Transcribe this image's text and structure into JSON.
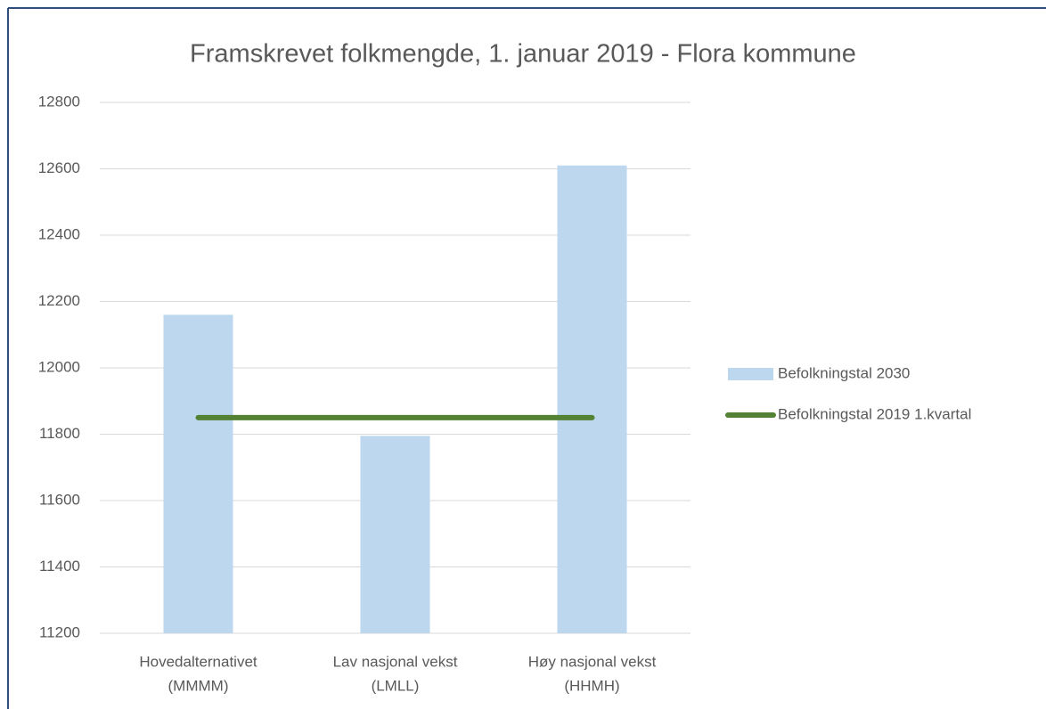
{
  "chart_data": {
    "type": "bar",
    "title": "Framskrevet folkmengde, 1. januar 2019 - Flora kommune",
    "categories": [
      [
        "Hovedalternativet",
        "(MMMM)"
      ],
      [
        "Lav nasjonal vekst",
        "(LMLL)"
      ],
      [
        "Høy nasjonal vekst",
        "(HHMH)"
      ]
    ],
    "series": [
      {
        "name": "Befolkningstal 2030",
        "type": "bar",
        "color": "#bdd7ee",
        "values": [
          12160,
          11795,
          12610
        ]
      },
      {
        "name": "Befolkningstal 2019 1.kvartal",
        "type": "line",
        "color": "#548235",
        "values": [
          11850,
          11850,
          11850
        ]
      }
    ],
    "ylim": [
      11200,
      12800
    ],
    "yticks": [
      11200,
      11400,
      11600,
      11800,
      12000,
      12200,
      12400,
      12600,
      12800
    ],
    "grid": true,
    "legend": "right"
  }
}
